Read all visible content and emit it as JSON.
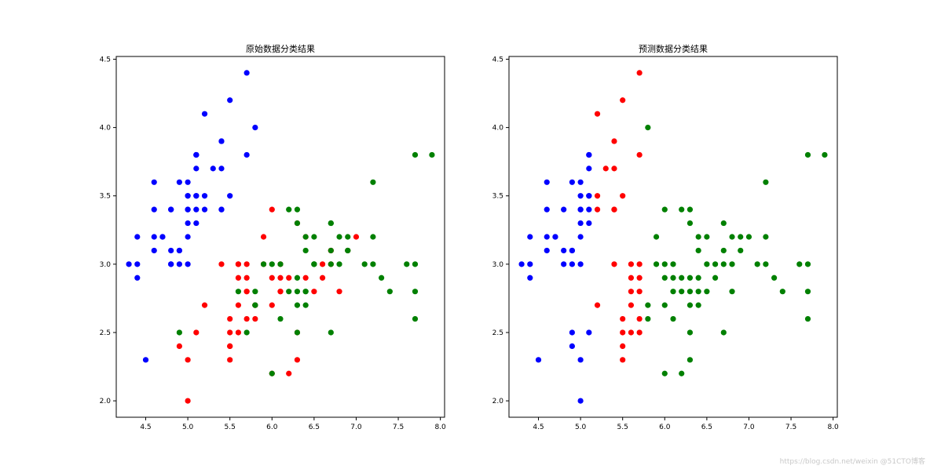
{
  "colors": {
    "class_0": "#0000ff",
    "class_1": "#ff0000",
    "class_2": "#008000"
  },
  "watermark": "https://blog.csdn.net/weixin @51CTO博客",
  "chart_data": [
    {
      "type": "scatter",
      "title": "原始数据分类结果",
      "xlim": [
        4.15,
        8.05
      ],
      "ylim": [
        1.88,
        4.52
      ],
      "xticks": [
        4.5,
        5.0,
        5.5,
        6.0,
        6.5,
        7.0,
        7.5,
        8.0
      ],
      "yticks": [
        2.0,
        2.5,
        3.0,
        3.5,
        4.0,
        4.5
      ],
      "series": [
        {
          "color": "#0000ff",
          "points": [
            [
              5.1,
              3.5
            ],
            [
              4.9,
              3.0
            ],
            [
              4.7,
              3.2
            ],
            [
              4.6,
              3.1
            ],
            [
              5.0,
              3.6
            ],
            [
              5.4,
              3.9
            ],
            [
              4.6,
              3.4
            ],
            [
              5.0,
              3.4
            ],
            [
              4.4,
              2.9
            ],
            [
              4.9,
              3.1
            ],
            [
              5.4,
              3.7
            ],
            [
              4.8,
              3.4
            ],
            [
              4.8,
              3.0
            ],
            [
              4.3,
              3.0
            ],
            [
              5.8,
              4.0
            ],
            [
              5.7,
              4.4
            ],
            [
              5.4,
              3.9
            ],
            [
              5.1,
              3.5
            ],
            [
              5.7,
              3.8
            ],
            [
              5.1,
              3.8
            ],
            [
              5.4,
              3.4
            ],
            [
              5.1,
              3.7
            ],
            [
              4.6,
              3.6
            ],
            [
              5.1,
              3.3
            ],
            [
              4.8,
              3.4
            ],
            [
              5.0,
              3.0
            ],
            [
              5.0,
              3.4
            ],
            [
              5.2,
              3.5
            ],
            [
              5.2,
              3.4
            ],
            [
              4.7,
              3.2
            ],
            [
              4.8,
              3.1
            ],
            [
              5.4,
              3.4
            ],
            [
              5.2,
              4.1
            ],
            [
              5.5,
              4.2
            ],
            [
              4.9,
              3.1
            ],
            [
              5.0,
              3.2
            ],
            [
              5.5,
              3.5
            ],
            [
              4.9,
              3.6
            ],
            [
              4.4,
              3.0
            ],
            [
              5.1,
              3.4
            ],
            [
              5.0,
              3.5
            ],
            [
              4.5,
              2.3
            ],
            [
              4.4,
              3.2
            ],
            [
              5.0,
              3.5
            ],
            [
              5.1,
              3.8
            ],
            [
              4.8,
              3.0
            ],
            [
              5.1,
              3.8
            ],
            [
              4.6,
              3.2
            ],
            [
              5.3,
              3.7
            ],
            [
              5.0,
              3.3
            ]
          ]
        },
        {
          "color": "#ff0000",
          "points": [
            [
              7.0,
              3.2
            ],
            [
              6.4,
              3.2
            ],
            [
              6.9,
              3.1
            ],
            [
              5.5,
              2.3
            ],
            [
              6.5,
              2.8
            ],
            [
              5.7,
              2.8
            ],
            [
              6.3,
              3.3
            ],
            [
              4.9,
              2.4
            ],
            [
              6.6,
              2.9
            ],
            [
              5.2,
              2.7
            ],
            [
              5.0,
              2.0
            ],
            [
              5.9,
              3.0
            ],
            [
              6.0,
              2.2
            ],
            [
              6.1,
              2.9
            ],
            [
              5.6,
              2.9
            ],
            [
              6.7,
              3.1
            ],
            [
              5.6,
              3.0
            ],
            [
              5.8,
              2.7
            ],
            [
              6.2,
              2.2
            ],
            [
              5.6,
              2.5
            ],
            [
              5.9,
              3.2
            ],
            [
              6.1,
              2.8
            ],
            [
              6.3,
              2.5
            ],
            [
              6.1,
              2.8
            ],
            [
              6.4,
              2.9
            ],
            [
              6.6,
              3.0
            ],
            [
              6.8,
              2.8
            ],
            [
              6.7,
              3.0
            ],
            [
              6.0,
              2.9
            ],
            [
              5.7,
              2.6
            ],
            [
              5.5,
              2.4
            ],
            [
              5.5,
              2.4
            ],
            [
              5.8,
              2.7
            ],
            [
              6.0,
              2.7
            ],
            [
              5.4,
              3.0
            ],
            [
              6.0,
              3.4
            ],
            [
              6.7,
              3.1
            ],
            [
              6.3,
              2.3
            ],
            [
              5.6,
              3.0
            ],
            [
              5.5,
              2.5
            ],
            [
              5.5,
              2.6
            ],
            [
              6.1,
              3.0
            ],
            [
              5.8,
              2.6
            ],
            [
              5.0,
              2.3
            ],
            [
              5.6,
              2.7
            ],
            [
              5.7,
              3.0
            ],
            [
              5.7,
              2.9
            ],
            [
              6.2,
              2.9
            ],
            [
              5.1,
              2.5
            ],
            [
              5.7,
              2.8
            ]
          ]
        },
        {
          "color": "#008000",
          "points": [
            [
              6.3,
              3.3
            ],
            [
              5.8,
              2.7
            ],
            [
              7.1,
              3.0
            ],
            [
              6.3,
              2.9
            ],
            [
              6.5,
              3.0
            ],
            [
              7.6,
              3.0
            ],
            [
              4.9,
              2.5
            ],
            [
              7.3,
              2.9
            ],
            [
              6.7,
              2.5
            ],
            [
              7.2,
              3.6
            ],
            [
              6.5,
              3.2
            ],
            [
              6.4,
              2.7
            ],
            [
              6.8,
              3.0
            ],
            [
              5.7,
              2.5
            ],
            [
              5.8,
              2.8
            ],
            [
              6.4,
              3.2
            ],
            [
              6.5,
              3.0
            ],
            [
              7.7,
              3.8
            ],
            [
              7.7,
              2.6
            ],
            [
              6.0,
              2.2
            ],
            [
              6.9,
              3.2
            ],
            [
              5.6,
              2.8
            ],
            [
              7.7,
              2.8
            ],
            [
              6.3,
              2.7
            ],
            [
              6.7,
              3.3
            ],
            [
              7.2,
              3.2
            ],
            [
              6.2,
              2.8
            ],
            [
              6.1,
              3.0
            ],
            [
              6.4,
              2.8
            ],
            [
              7.2,
              3.0
            ],
            [
              7.4,
              2.8
            ],
            [
              7.9,
              3.8
            ],
            [
              6.4,
              2.8
            ],
            [
              6.3,
              2.8
            ],
            [
              6.1,
              2.6
            ],
            [
              7.7,
              3.0
            ],
            [
              6.3,
              3.4
            ],
            [
              6.4,
              3.1
            ],
            [
              6.0,
              3.0
            ],
            [
              6.9,
              3.1
            ],
            [
              6.7,
              3.1
            ],
            [
              6.9,
              3.1
            ],
            [
              5.8,
              2.7
            ],
            [
              6.8,
              3.2
            ],
            [
              6.7,
              3.3
            ],
            [
              6.7,
              3.0
            ],
            [
              6.3,
              2.5
            ],
            [
              6.5,
              3.0
            ],
            [
              6.2,
              3.4
            ],
            [
              5.9,
              3.0
            ]
          ]
        }
      ]
    },
    {
      "type": "scatter",
      "title": "预测数据分类结果",
      "xlim": [
        4.15,
        8.05
      ],
      "ylim": [
        1.88,
        4.52
      ],
      "xticks": [
        4.5,
        5.0,
        5.5,
        6.0,
        6.5,
        7.0,
        7.5,
        8.0
      ],
      "yticks": [
        2.0,
        2.5,
        3.0,
        3.5,
        4.0,
        4.5
      ],
      "series": [
        {
          "color": "#0000ff",
          "points": [
            [
              4.9,
              3.0
            ],
            [
              4.7,
              3.2
            ],
            [
              4.6,
              3.1
            ],
            [
              5.0,
              3.6
            ],
            [
              4.6,
              3.4
            ],
            [
              5.0,
              3.4
            ],
            [
              4.4,
              2.9
            ],
            [
              4.9,
              3.1
            ],
            [
              4.8,
              3.4
            ],
            [
              4.8,
              3.0
            ],
            [
              4.3,
              3.0
            ],
            [
              5.1,
              3.5
            ],
            [
              5.1,
              3.8
            ],
            [
              4.6,
              3.6
            ],
            [
              5.1,
              3.3
            ],
            [
              5.0,
              3.0
            ],
            [
              5.0,
              3.4
            ],
            [
              4.7,
              3.2
            ],
            [
              4.8,
              3.1
            ],
            [
              4.9,
              3.1
            ],
            [
              5.0,
              3.2
            ],
            [
              4.9,
              3.6
            ],
            [
              4.4,
              3.0
            ],
            [
              5.1,
              3.4
            ],
            [
              5.0,
              3.5
            ],
            [
              4.5,
              2.3
            ],
            [
              4.4,
              3.2
            ],
            [
              5.1,
              3.8
            ],
            [
              4.6,
              3.2
            ],
            [
              5.0,
              3.3
            ],
            [
              4.9,
              2.4
            ],
            [
              5.0,
              2.0
            ],
            [
              5.1,
              2.5
            ],
            [
              5.0,
              2.3
            ],
            [
              4.9,
              2.5
            ],
            [
              5.1,
              3.7
            ],
            [
              5.1,
              3.5
            ]
          ]
        },
        {
          "color": "#ff0000",
          "points": [
            [
              5.4,
              3.9
            ],
            [
              5.4,
              3.7
            ],
            [
              5.7,
              4.4
            ],
            [
              5.7,
              3.8
            ],
            [
              5.4,
              3.4
            ],
            [
              5.2,
              3.5
            ],
            [
              5.2,
              3.4
            ],
            [
              5.4,
              3.4
            ],
            [
              5.2,
              4.1
            ],
            [
              5.5,
              4.2
            ],
            [
              5.5,
              3.5
            ],
            [
              5.3,
              3.7
            ],
            [
              5.5,
              2.3
            ],
            [
              5.7,
              2.8
            ],
            [
              5.2,
              2.7
            ],
            [
              5.6,
              2.9
            ],
            [
              5.6,
              3.0
            ],
            [
              5.6,
              2.5
            ],
            [
              5.7,
              2.6
            ],
            [
              5.5,
              2.4
            ],
            [
              5.4,
              3.0
            ],
            [
              5.5,
              2.5
            ],
            [
              5.5,
              2.6
            ],
            [
              5.6,
              2.7
            ],
            [
              5.7,
              3.0
            ],
            [
              5.7,
              2.9
            ],
            [
              5.6,
              2.8
            ],
            [
              5.7,
              2.5
            ]
          ]
        },
        {
          "color": "#008000",
          "points": [
            [
              5.8,
              4.0
            ],
            [
              7.0,
              3.2
            ],
            [
              6.4,
              3.2
            ],
            [
              6.9,
              3.1
            ],
            [
              6.5,
              2.8
            ],
            [
              6.3,
              3.3
            ],
            [
              6.6,
              2.9
            ],
            [
              5.9,
              3.0
            ],
            [
              6.0,
              2.2
            ],
            [
              6.1,
              2.9
            ],
            [
              6.7,
              3.1
            ],
            [
              5.8,
              2.7
            ],
            [
              6.2,
              2.2
            ],
            [
              5.9,
              3.2
            ],
            [
              6.1,
              2.8
            ],
            [
              6.3,
              2.5
            ],
            [
              6.4,
              2.9
            ],
            [
              6.6,
              3.0
            ],
            [
              6.8,
              2.8
            ],
            [
              6.7,
              3.0
            ],
            [
              6.0,
              2.9
            ],
            [
              6.0,
              2.7
            ],
            [
              6.0,
              3.4
            ],
            [
              6.3,
              2.3
            ],
            [
              6.1,
              3.0
            ],
            [
              5.8,
              2.6
            ],
            [
              6.2,
              2.9
            ],
            [
              7.1,
              3.0
            ],
            [
              6.3,
              2.9
            ],
            [
              6.5,
              3.0
            ],
            [
              7.6,
              3.0
            ],
            [
              7.3,
              2.9
            ],
            [
              6.7,
              2.5
            ],
            [
              7.2,
              3.6
            ],
            [
              6.5,
              3.2
            ],
            [
              6.4,
              2.7
            ],
            [
              6.8,
              3.0
            ],
            [
              7.7,
              3.8
            ],
            [
              7.7,
              2.6
            ],
            [
              6.9,
              3.2
            ],
            [
              7.7,
              2.8
            ],
            [
              6.3,
              2.7
            ],
            [
              6.7,
              3.3
            ],
            [
              7.2,
              3.2
            ],
            [
              6.2,
              2.8
            ],
            [
              6.4,
              2.8
            ],
            [
              7.2,
              3.0
            ],
            [
              7.4,
              2.8
            ],
            [
              7.9,
              3.8
            ],
            [
              6.1,
              2.6
            ],
            [
              7.7,
              3.0
            ],
            [
              6.3,
              3.4
            ],
            [
              6.4,
              3.1
            ],
            [
              6.0,
              3.0
            ],
            [
              6.8,
              3.2
            ],
            [
              6.2,
              3.4
            ],
            [
              6.3,
              2.8
            ]
          ]
        }
      ]
    }
  ]
}
